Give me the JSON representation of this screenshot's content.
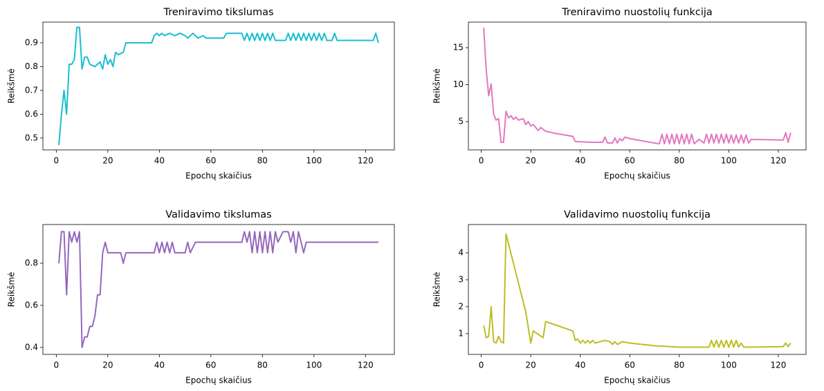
{
  "chart_data": [
    {
      "type": "line",
      "title": "Treniravimo tikslumas",
      "xlabel": "Epochų skaičius",
      "ylabel": "Reikšmė",
      "color": "#17becf",
      "x": [
        1,
        2,
        3,
        4,
        5,
        6,
        7,
        8,
        9,
        10,
        11,
        12,
        13,
        15,
        17,
        18,
        19,
        20,
        21,
        22,
        23,
        24,
        26,
        27,
        37,
        38,
        39,
        40,
        41,
        42,
        44,
        46,
        48,
        50,
        51,
        53,
        55,
        57,
        58,
        65,
        66,
        72,
        73,
        74,
        75,
        76,
        77,
        78,
        79,
        80,
        81,
        82,
        83,
        84,
        85,
        89,
        90,
        91,
        92,
        93,
        94,
        95,
        96,
        97,
        98,
        99,
        100,
        101,
        102,
        103,
        104,
        105,
        107,
        108,
        109,
        123,
        124,
        125
      ],
      "values": [
        0.47,
        0.6,
        0.7,
        0.6,
        0.81,
        0.81,
        0.83,
        0.965,
        0.965,
        0.79,
        0.84,
        0.84,
        0.81,
        0.8,
        0.82,
        0.79,
        0.85,
        0.81,
        0.83,
        0.8,
        0.86,
        0.85,
        0.86,
        0.9,
        0.9,
        0.93,
        0.94,
        0.93,
        0.94,
        0.93,
        0.94,
        0.93,
        0.94,
        0.93,
        0.92,
        0.94,
        0.92,
        0.93,
        0.92,
        0.92,
        0.94,
        0.94,
        0.91,
        0.94,
        0.91,
        0.94,
        0.91,
        0.94,
        0.91,
        0.94,
        0.91,
        0.94,
        0.91,
        0.94,
        0.91,
        0.91,
        0.94,
        0.91,
        0.94,
        0.91,
        0.94,
        0.91,
        0.94,
        0.91,
        0.94,
        0.91,
        0.94,
        0.91,
        0.94,
        0.91,
        0.94,
        0.91,
        0.91,
        0.94,
        0.91,
        0.91,
        0.94,
        0.9
      ],
      "xlim": [
        -5.2,
        131.2
      ],
      "ylim": [
        0.45,
        0.987
      ],
      "xticks": [
        0,
        20,
        40,
        60,
        80,
        100,
        120
      ],
      "yticks": [
        0.5,
        0.6,
        0.7,
        0.8,
        0.9
      ]
    },
    {
      "type": "line",
      "title": "Treniravimo nuostolių funkcija",
      "xlabel": "Epochų skaičius",
      "ylabel": "Reikšmė",
      "color": "#e377c2",
      "x": [
        1,
        2,
        3,
        4,
        5,
        6,
        7,
        8,
        9,
        10,
        11,
        12,
        13,
        14,
        15,
        17,
        18,
        19,
        20,
        21,
        23,
        24,
        26,
        30,
        37,
        38,
        45,
        49,
        50,
        51,
        53,
        54,
        55,
        56,
        57,
        58,
        60,
        65,
        70,
        72,
        73,
        74,
        75,
        76,
        77,
        78,
        79,
        80,
        81,
        82,
        83,
        84,
        85,
        86,
        88,
        90,
        91,
        92,
        93,
        94,
        95,
        96,
        97,
        98,
        99,
        100,
        101,
        102,
        103,
        104,
        105,
        106,
        107,
        108,
        109,
        122,
        123,
        124,
        125
      ],
      "values": [
        17.7,
        12,
        8.5,
        10.1,
        6,
        5.2,
        5.4,
        2.2,
        2.2,
        6.4,
        5.5,
        5.8,
        5.3,
        5.6,
        5.2,
        5.4,
        4.6,
        5,
        4.4,
        4.6,
        3.8,
        4.2,
        3.7,
        3.4,
        3,
        2.3,
        2.2,
        2.2,
        2.9,
        2.1,
        2.1,
        2.8,
        2.1,
        2.7,
        2.4,
        2.9,
        2.7,
        2.4,
        2.1,
        2,
        3.3,
        2,
        3.3,
        2,
        3.3,
        2,
        3.3,
        2,
        3.3,
        2,
        3.3,
        2,
        3.3,
        2,
        2.6,
        2.1,
        3.3,
        2.1,
        3.3,
        2.1,
        3.3,
        2.1,
        3.3,
        2.1,
        3.3,
        2.1,
        3.2,
        2.1,
        3.2,
        2.1,
        3.2,
        2.1,
        3.2,
        2.1,
        2.6,
        2.5,
        3.5,
        2.2,
        3.5
      ],
      "xlim": [
        -5.2,
        131.2
      ],
      "ylim": [
        1.17,
        18.46
      ],
      "xticks": [
        0,
        20,
        40,
        60,
        80,
        100,
        120
      ],
      "yticks": [
        5,
        10,
        15
      ]
    },
    {
      "type": "line",
      "title": "Validavimo tikslumas",
      "xlabel": "Epochų skaičius",
      "ylabel": "Reikšmė",
      "color": "#9467bd",
      "x": [
        1,
        2,
        3,
        4,
        5,
        6,
        7,
        8,
        9,
        10,
        11,
        12,
        13,
        14,
        15,
        16,
        17,
        18,
        19,
        20,
        25,
        26,
        27,
        38,
        39,
        40,
        41,
        42,
        43,
        44,
        45,
        46,
        50,
        51,
        52,
        54,
        72,
        73,
        74,
        75,
        76,
        77,
        78,
        79,
        80,
        81,
        82,
        83,
        84,
        85,
        86,
        88,
        90,
        91,
        92,
        93,
        94,
        95,
        96,
        97,
        125
      ],
      "values": [
        0.8,
        0.95,
        0.95,
        0.65,
        0.95,
        0.9,
        0.95,
        0.9,
        0.95,
        0.4,
        0.45,
        0.45,
        0.5,
        0.5,
        0.55,
        0.65,
        0.65,
        0.85,
        0.9,
        0.85,
        0.85,
        0.8,
        0.85,
        0.85,
        0.9,
        0.85,
        0.9,
        0.85,
        0.9,
        0.85,
        0.9,
        0.85,
        0.85,
        0.9,
        0.85,
        0.9,
        0.9,
        0.95,
        0.9,
        0.95,
        0.85,
        0.95,
        0.85,
        0.95,
        0.85,
        0.95,
        0.85,
        0.95,
        0.85,
        0.95,
        0.9,
        0.95,
        0.95,
        0.9,
        0.95,
        0.85,
        0.95,
        0.9,
        0.85,
        0.9,
        0.9
      ],
      "xlim": [
        -5.2,
        131.2
      ],
      "ylim": [
        0.367,
        0.984
      ],
      "xticks": [
        0,
        20,
        40,
        60,
        80,
        100,
        120
      ],
      "yticks": [
        0.4,
        0.6,
        0.8
      ]
    },
    {
      "type": "line",
      "title": "Validavimo nuostolių funkcija",
      "xlabel": "Epochų skaičius",
      "ylabel": "Reikšmė",
      "color": "#bcbd22",
      "x": [
        1,
        2,
        3,
        4,
        5,
        6,
        7,
        8,
        9,
        10,
        18,
        20,
        21,
        25,
        26,
        37,
        38,
        39,
        40,
        41,
        42,
        43,
        44,
        45,
        46,
        50,
        52,
        53,
        54,
        55,
        57,
        60,
        70,
        80,
        90,
        92,
        93,
        94,
        95,
        96,
        97,
        98,
        99,
        100,
        101,
        102,
        103,
        104,
        105,
        106,
        108,
        122,
        123,
        124,
        125
      ],
      "values": [
        1.3,
        0.85,
        0.9,
        2,
        0.7,
        0.65,
        0.9,
        0.7,
        0.65,
        4.7,
        1.8,
        0.65,
        1.1,
        0.85,
        1.45,
        1.1,
        0.75,
        0.8,
        0.65,
        0.75,
        0.65,
        0.75,
        0.65,
        0.75,
        0.65,
        0.75,
        0.7,
        0.6,
        0.7,
        0.6,
        0.7,
        0.65,
        0.55,
        0.5,
        0.5,
        0.5,
        0.75,
        0.5,
        0.75,
        0.5,
        0.75,
        0.5,
        0.75,
        0.5,
        0.75,
        0.5,
        0.75,
        0.5,
        0.65,
        0.5,
        0.5,
        0.52,
        0.65,
        0.52,
        0.65
      ],
      "xlim": [
        -5.2,
        131.2
      ],
      "ylim": [
        0.23,
        5.05
      ],
      "xticks": [
        0,
        20,
        40,
        60,
        80,
        100,
        120
      ],
      "yticks": [
        1,
        2,
        3,
        4
      ]
    }
  ]
}
